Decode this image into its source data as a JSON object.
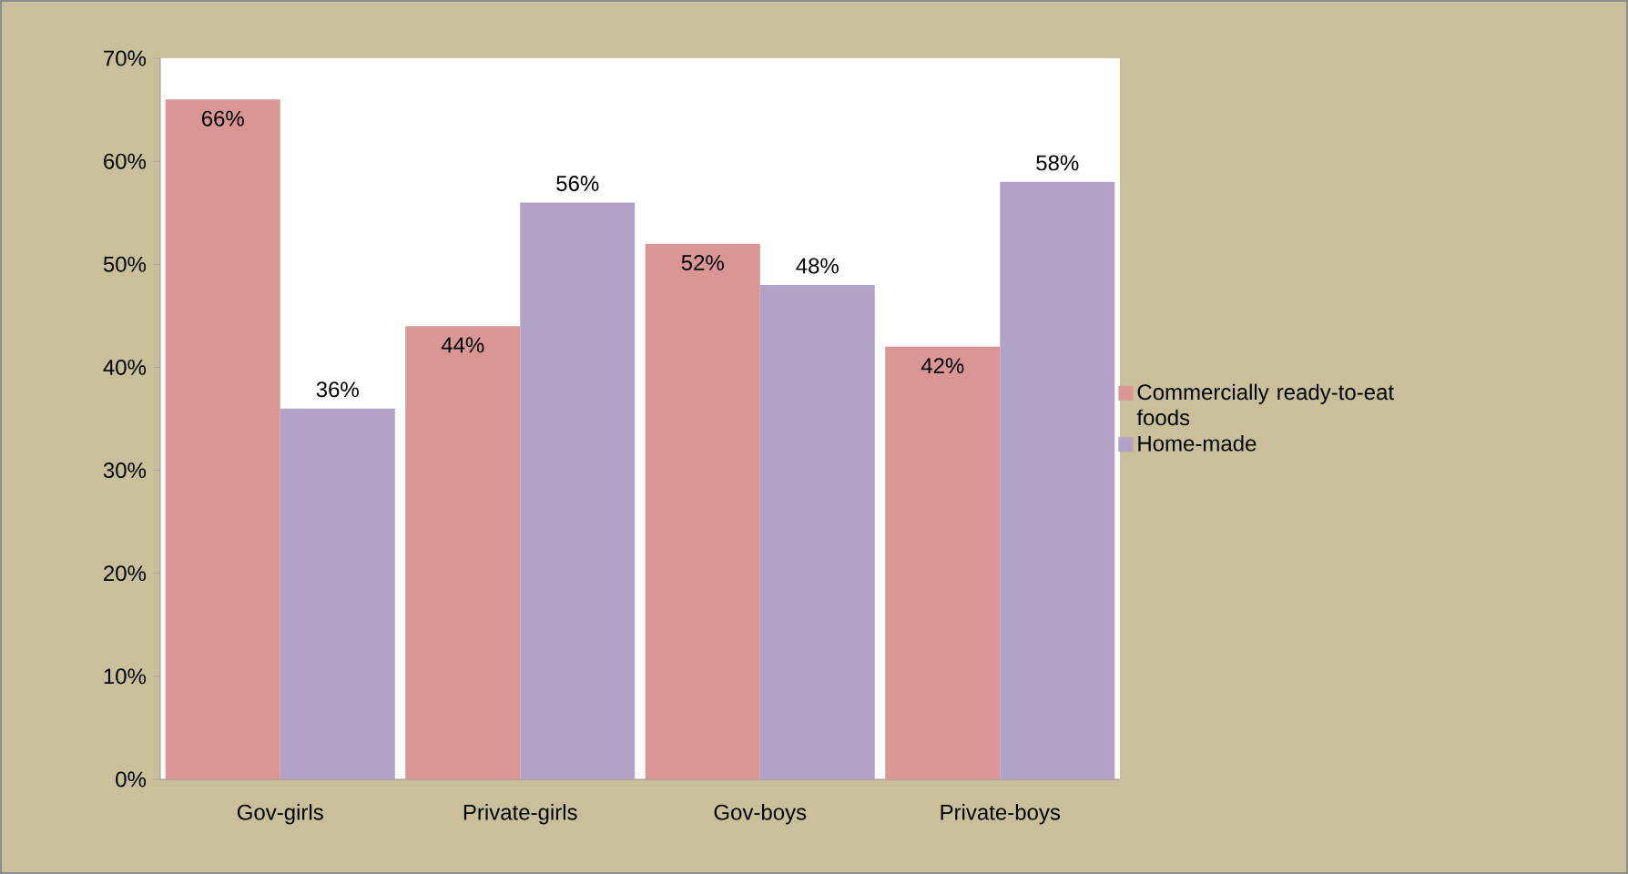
{
  "chart_data": {
    "type": "bar",
    "categories": [
      "Gov-girls",
      "Private-girls",
      "Gov-boys",
      "Private-boys"
    ],
    "series": [
      {
        "name": "Commercially ready-to-eat foods",
        "color": "#d99694",
        "values": [
          66,
          44,
          52,
          42
        ],
        "value_labels": [
          "66%",
          "44%",
          "52%",
          "42%"
        ]
      },
      {
        "name": "Home-made",
        "color": "#b3a2c7",
        "values": [
          36,
          56,
          48,
          58
        ],
        "value_labels": [
          "36%",
          "56%",
          "48%",
          "58%"
        ]
      }
    ],
    "ylim": [
      0,
      70
    ],
    "yticks": [
      {
        "value": 0,
        "label": "0%"
      },
      {
        "value": 10,
        "label": "10%"
      },
      {
        "value": 20,
        "label": "20%"
      },
      {
        "value": 30,
        "label": "30%"
      },
      {
        "value": 40,
        "label": "40%"
      },
      {
        "value": 50,
        "label": "50%"
      },
      {
        "value": 60,
        "label": "60%"
      },
      {
        "value": 70,
        "label": "70%"
      }
    ],
    "grid": false,
    "legend": "right"
  }
}
